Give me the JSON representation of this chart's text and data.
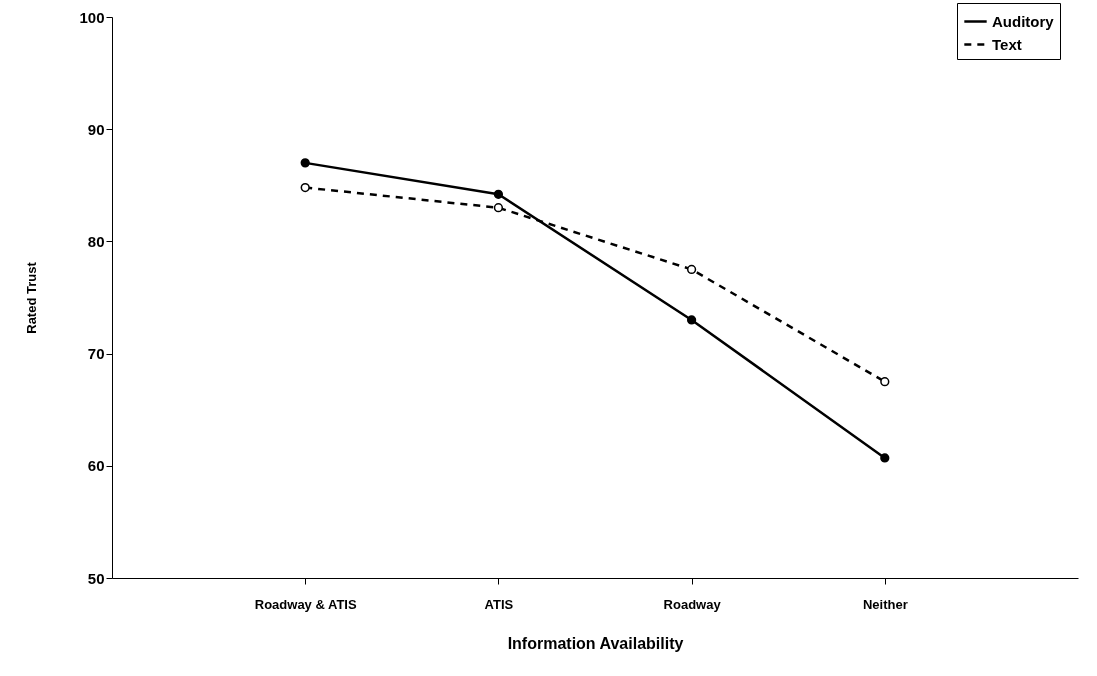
{
  "chart_data": {
    "type": "line",
    "xlabel": "Information Availability",
    "ylabel": "Rated Trust",
    "categories": [
      "Roadway & ATIS",
      "ATIS",
      "Roadway",
      "Neither"
    ],
    "series": [
      {
        "name": "Auditory",
        "color": "#000000",
        "line_style": "solid",
        "values": [
          87,
          84.2,
          73,
          60.7
        ]
      },
      {
        "name": "Text",
        "color": "#000000",
        "line_style": "dashed",
        "values": [
          84.8,
          83,
          77.5,
          67.5
        ]
      }
    ],
    "ylim": [
      50,
      100
    ],
    "yticks": [
      50,
      60,
      70,
      80,
      90,
      100
    ],
    "grid": false,
    "legend": "top right",
    "marker": "circle"
  }
}
